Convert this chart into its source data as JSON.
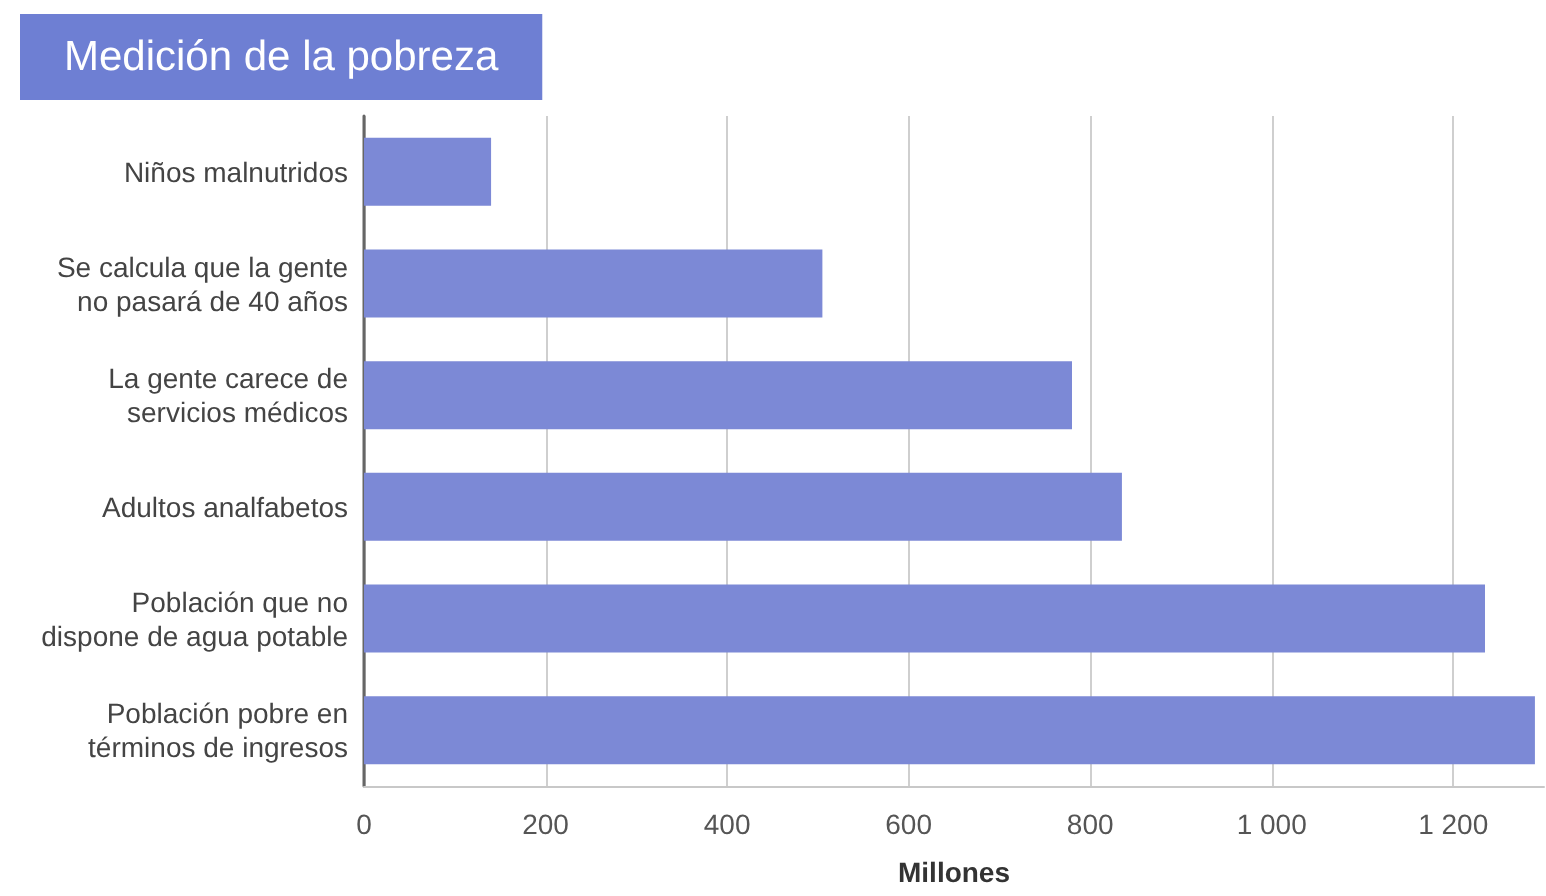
{
  "chart_data": {
    "type": "bar",
    "orientation": "horizontal",
    "title": "Medición de la pobreza",
    "xlabel": "Millones",
    "categories": [
      "Niños malnutridos",
      "Se calcula que la gente no pasará de 40 años",
      "La gente carece de servicios médicos",
      "Adultos analfabetos",
      "Población que no dispone de agua potable",
      "Población pobre en términos de ingresos"
    ],
    "values": [
      140,
      505,
      780,
      835,
      1235,
      1290
    ],
    "color": "#7c89d6",
    "xlim": [
      0,
      1300
    ],
    "xticks": [
      0,
      200,
      400,
      600,
      800,
      {
        "value": 1000,
        "label": "1 000"
      },
      {
        "value": 1200,
        "label": "1 200"
      }
    ],
    "grid": "x"
  }
}
